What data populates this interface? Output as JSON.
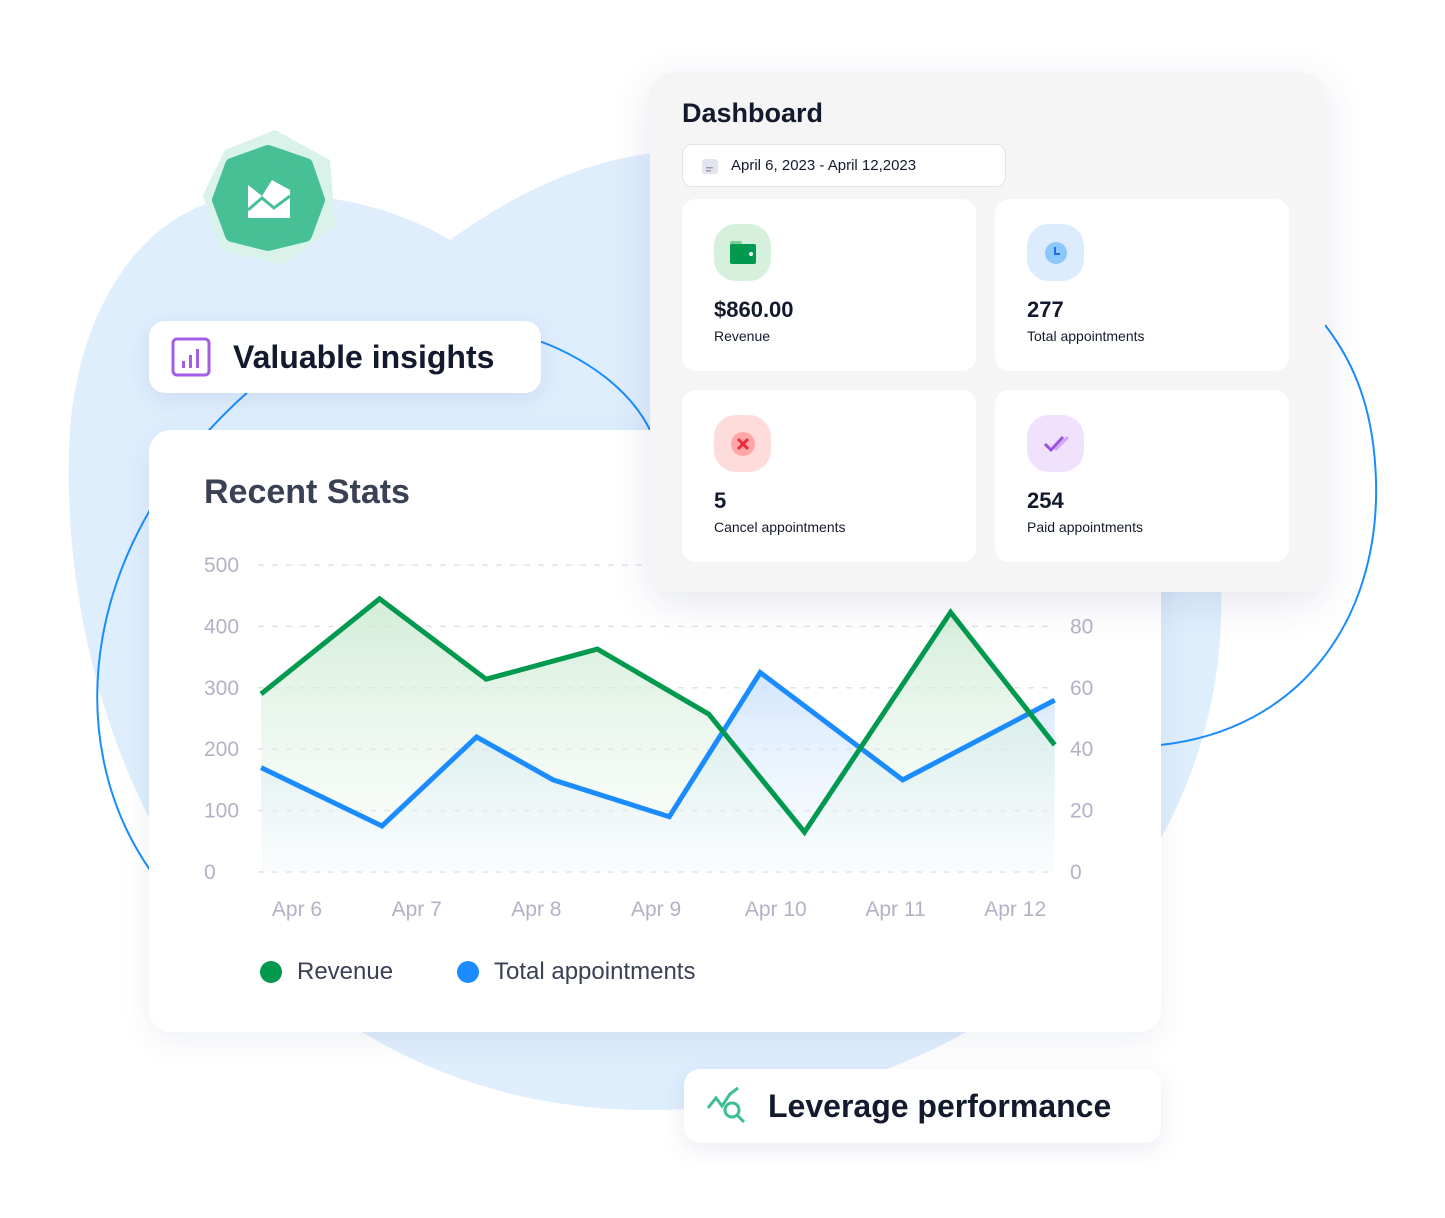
{
  "badges": {
    "insights": "Valuable insights",
    "performance": "Leverage performance"
  },
  "dashboard": {
    "title": "Dashboard",
    "date_range": "April 6, 2023 - April 12,2023",
    "stats": [
      {
        "value": "$860.00",
        "label": "Revenue",
        "icon": "wallet-icon",
        "color": "#00994d",
        "bg": "#d5f0dd"
      },
      {
        "value": "277",
        "label": "Total appointments",
        "icon": "clock-icon",
        "color": "#1a8cff",
        "bg": "#dcecfd"
      },
      {
        "value": "5",
        "label": "Cancel appointments",
        "icon": "x-circle-icon",
        "color": "#f0283c",
        "bg": "#ffdcdc"
      },
      {
        "value": "254",
        "label": "Paid appointments",
        "icon": "double-check-icon",
        "color": "#9b51e0",
        "bg": "#f0e2fd"
      }
    ]
  },
  "chart_data": {
    "type": "line",
    "title": "Recent Stats",
    "categories": [
      "Apr 6",
      "Apr 7",
      "Apr 8",
      "Apr 9",
      "Apr 10",
      "Apr 11",
      "Apr 12"
    ],
    "x_unit": "day of April",
    "y_left": {
      "ylim": [
        0,
        500
      ],
      "ticks": [
        "0",
        "100",
        "200",
        "300",
        "400",
        "500"
      ]
    },
    "y_right": {
      "ylim": [
        0,
        100
      ],
      "ticks": [
        "0",
        "20",
        "40",
        "60",
        "80"
      ]
    },
    "grid": true,
    "legend_position": "bottom-left",
    "series": [
      {
        "name": "Revenue",
        "axis": "left",
        "color": "#00994d",
        "x": [
          5.7,
          6.69,
          7.58,
          8.51,
          9.44,
          10.24,
          11.46,
          12.33
        ],
        "values": [
          290,
          445,
          314,
          363,
          257,
          65,
          423,
          207
        ]
      },
      {
        "name": "Total appointments",
        "axis": "right",
        "color": "#1a8cff",
        "x": [
          5.7,
          6.71,
          7.5,
          8.14,
          9.11,
          9.87,
          11.06,
          12.33
        ],
        "values": [
          34,
          15,
          44,
          30,
          18,
          65,
          30,
          56
        ]
      }
    ]
  }
}
